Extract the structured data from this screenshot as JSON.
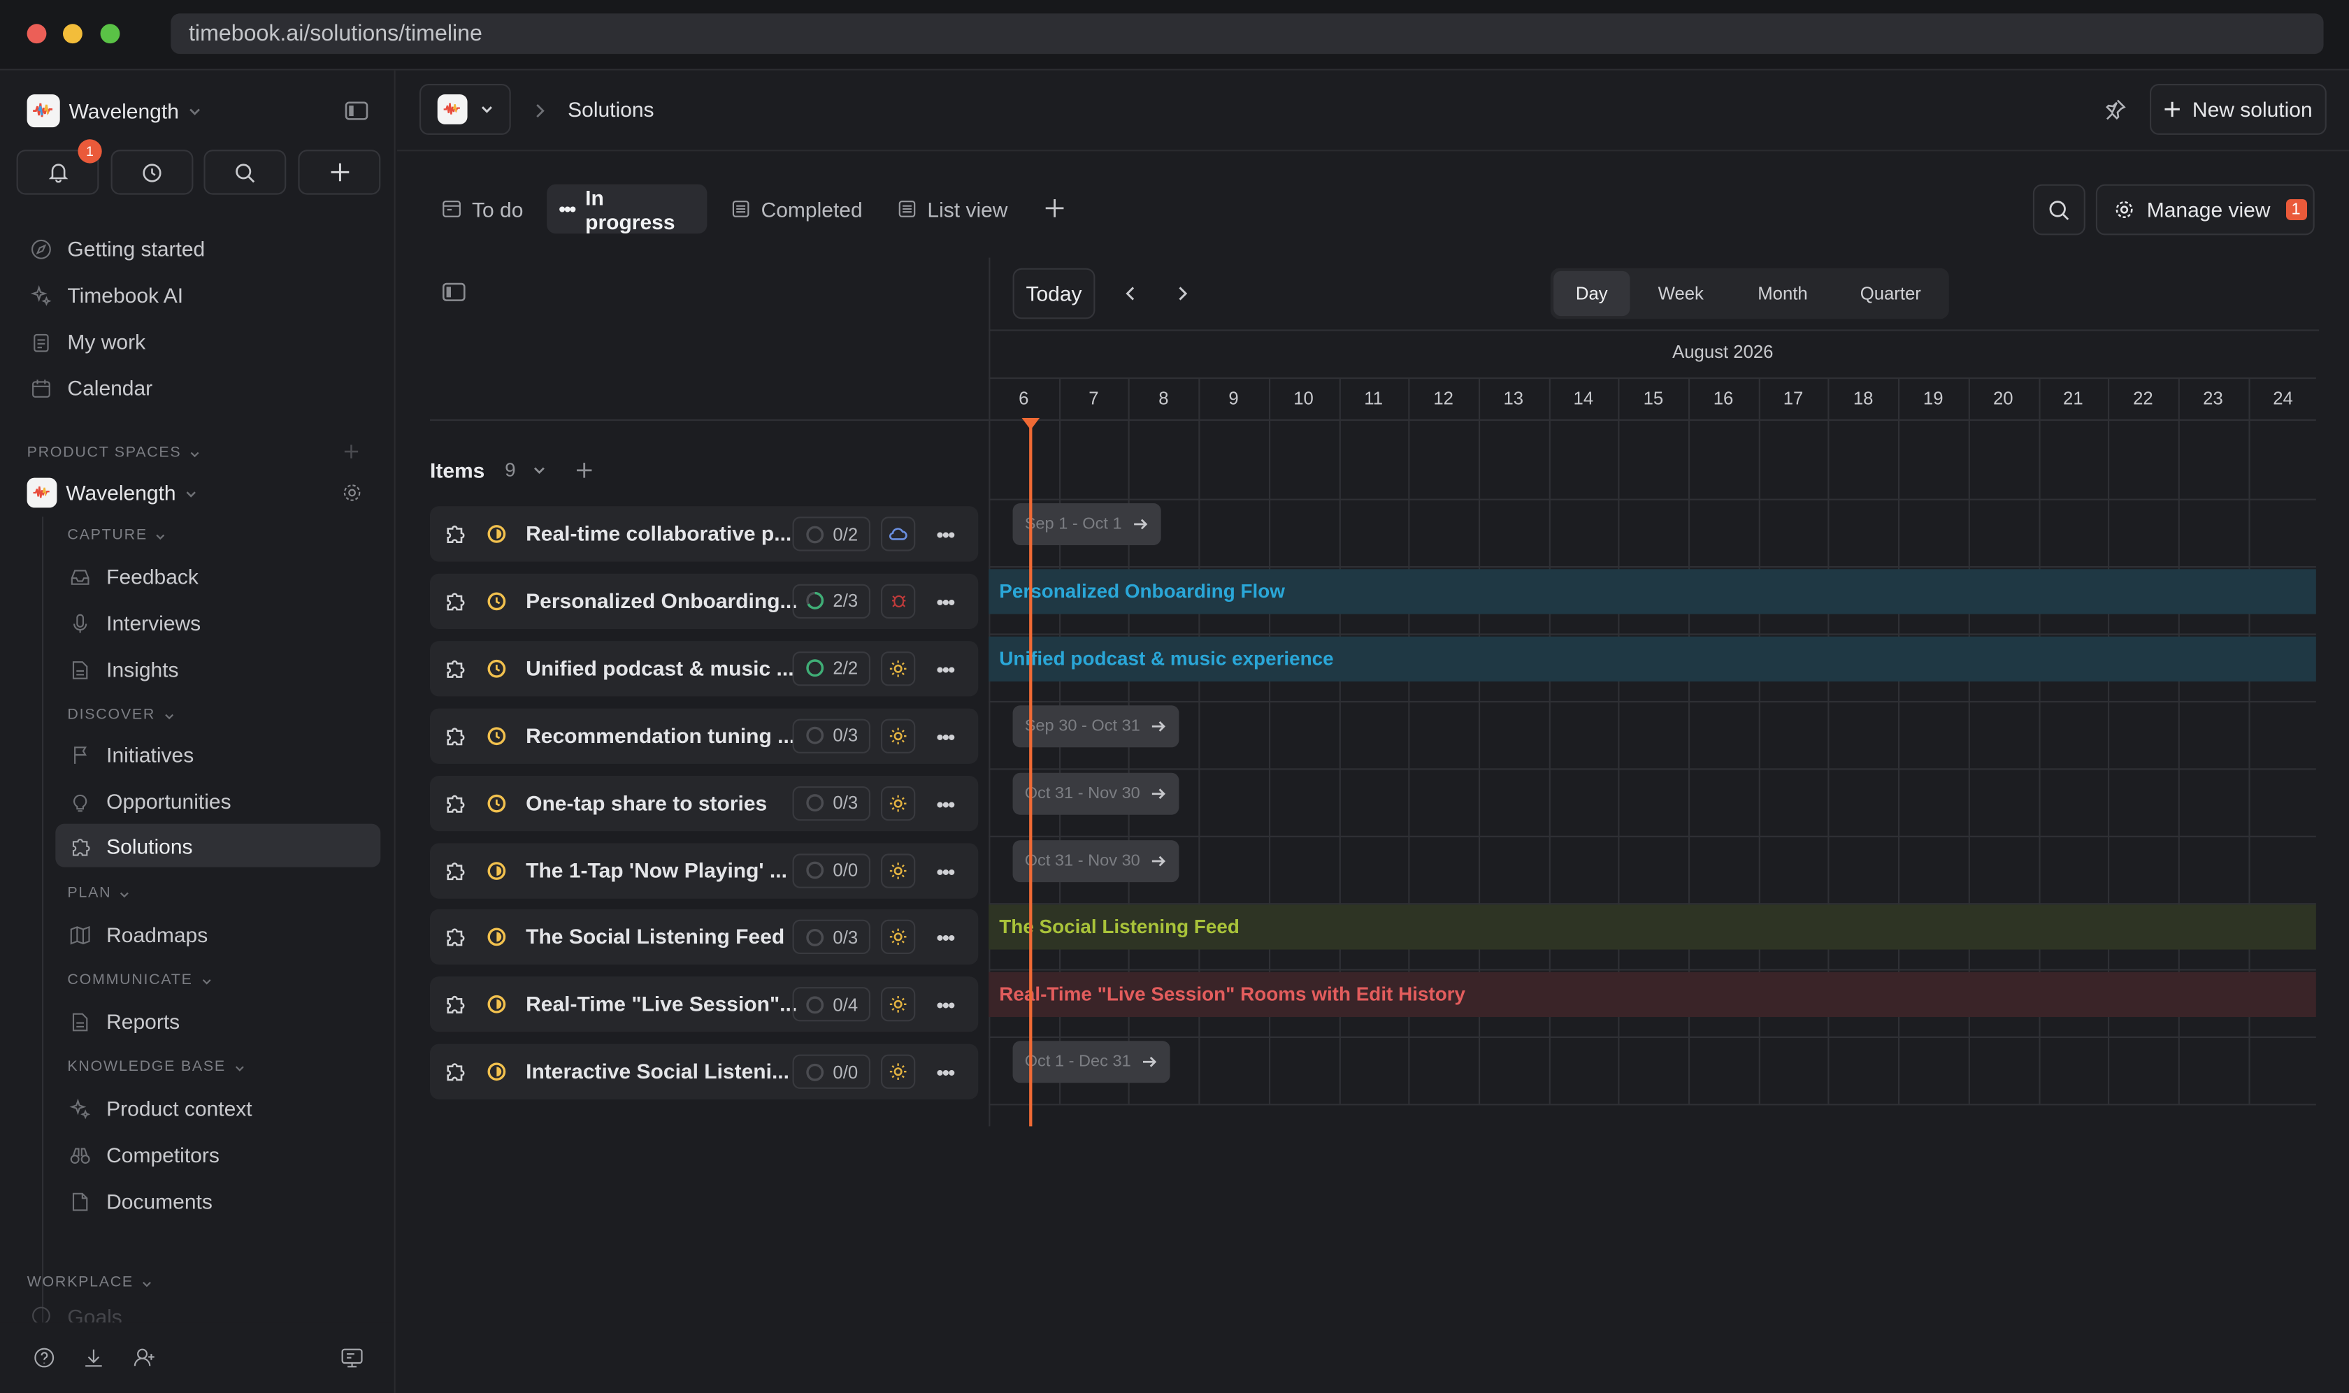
{
  "browser": {
    "url": "timebook.ai/solutions/timeline"
  },
  "sidebar": {
    "workspace": "Wavelength",
    "notification_count": "1",
    "nav": [
      {
        "label": "Getting started",
        "icon": "compass-icon"
      },
      {
        "label": "Timebook AI",
        "icon": "sparkle-icon"
      },
      {
        "label": "My work",
        "icon": "clipboard-icon"
      },
      {
        "label": "Calendar",
        "icon": "calendar-icon"
      }
    ],
    "product_spaces_label": "PRODUCT SPACES",
    "space_name": "Wavelength",
    "capture_label": "CAPTURE",
    "capture": [
      "Feedback",
      "Interviews",
      "Insights"
    ],
    "discover_label": "DISCOVER",
    "discover": [
      "Initiatives",
      "Opportunities",
      "Solutions"
    ],
    "plan_label": "PLAN",
    "plan": [
      "Roadmaps"
    ],
    "communicate_label": "COMMUNICATE",
    "communicate": [
      "Reports"
    ],
    "kb_label": "KNOWLEDGE BASE",
    "kb": [
      "Product context",
      "Competitors",
      "Documents"
    ],
    "workplace_label": "WORKPLACE",
    "workplace_next": "Goals"
  },
  "topbar": {
    "breadcrumb": "Solutions",
    "new_solution": "New solution"
  },
  "tabs": [
    "To do",
    "In progress",
    "Completed",
    "List view"
  ],
  "manage_view": {
    "label": "Manage view",
    "count": "1"
  },
  "timeline_controls": {
    "today": "Today",
    "scales": [
      "Day",
      "Week",
      "Month",
      "Quarter"
    ],
    "active_scale": "Day"
  },
  "items_header": {
    "label": "Items",
    "count": "9"
  },
  "calendar": {
    "month": "August 2026",
    "days": [
      "6",
      "7",
      "8",
      "9",
      "10",
      "11",
      "12",
      "13",
      "14",
      "15",
      "16",
      "17",
      "18",
      "19",
      "20",
      "21",
      "22",
      "23",
      "24"
    ],
    "today": "6"
  },
  "rows": [
    {
      "title": "Real-time collaborative p...",
      "progress": "0/2",
      "progress_fraction": 0,
      "tag_icon": "cloud-icon",
      "bar_type": "chip",
      "bar_text": "Sep 1 - Oct 1"
    },
    {
      "title": "Personalized Onboarding...",
      "progress": "2/3",
      "progress_fraction": 0.67,
      "tag_icon": "bug-icon",
      "bar_type": "full",
      "bar_text": "Personalized Onboarding Flow",
      "bar_color": "#2aa7d8",
      "bar_bg": "#1f3844"
    },
    {
      "title": "Unified podcast & music ...",
      "progress": "2/2",
      "progress_fraction": 1,
      "tag_icon": "sun-icon",
      "bar_type": "full",
      "bar_text": "Unified podcast & music experience",
      "bar_color": "#2aa7d8",
      "bar_bg": "#1f3844"
    },
    {
      "title": "Recommendation tuning ...",
      "progress": "0/3",
      "progress_fraction": 0,
      "tag_icon": "sun-icon",
      "bar_type": "chip",
      "bar_text": "Sep 30 - Oct 31"
    },
    {
      "title": "One-tap share to stories",
      "progress": "0/3",
      "progress_fraction": 0,
      "tag_icon": "sun-icon",
      "bar_type": "chip",
      "bar_text": "Oct 31 - Nov 30"
    },
    {
      "title": "The 1-Tap 'Now Playing' ...",
      "progress": "0/0",
      "progress_fraction": 0,
      "tag_icon": "sun-icon",
      "bar_type": "chip",
      "bar_text": "Oct 31 - Nov 30"
    },
    {
      "title": "The Social Listening Feed",
      "progress": "0/3",
      "progress_fraction": 0,
      "tag_icon": "sun-icon",
      "bar_type": "full",
      "bar_text": "The Social Listening Feed",
      "bar_color": "#a9c33a",
      "bar_bg": "#2e3424"
    },
    {
      "title": "Real-Time \"Live Session\"...",
      "progress": "0/4",
      "progress_fraction": 0,
      "tag_icon": "sun-icon",
      "bar_type": "full",
      "bar_text": "Real-Time \"Live Session\" Rooms with Edit History",
      "bar_color": "#e35d5d",
      "bar_bg": "#3a2428"
    },
    {
      "title": "Interactive Social Listeni...",
      "progress": "0/0",
      "progress_fraction": 0,
      "tag_icon": "sun-icon",
      "bar_type": "chip",
      "bar_text": "Oct 1 - Dec 31"
    }
  ],
  "colors": {
    "accent_orange": "#f06a35",
    "status_yellow": "#f2c14e"
  }
}
